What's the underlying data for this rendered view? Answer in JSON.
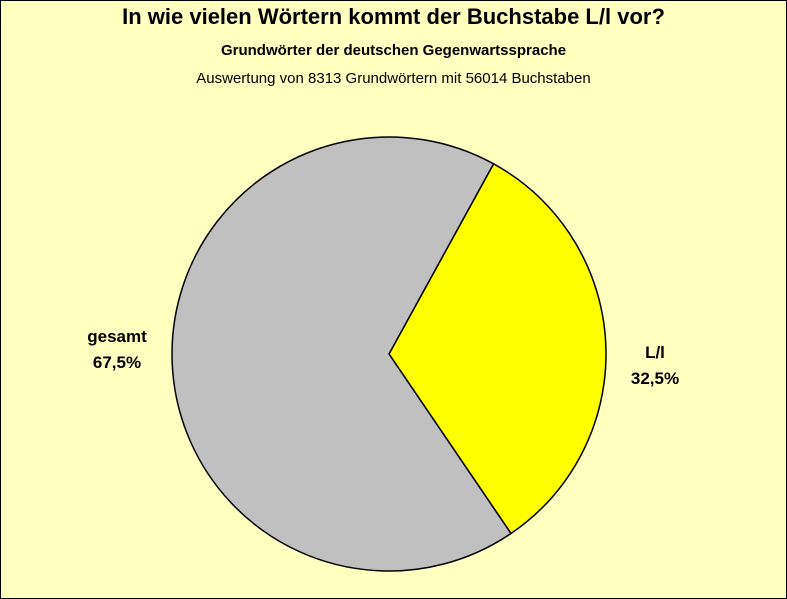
{
  "title": "In wie vielen Wörtern kommt der Buchstabe L/l vor?",
  "subtitle": "Grundwörter der deutschen Gegenwartssprache",
  "subtitle2": "Auswertung von 8313 Grundwörtern mit 56014 Buchstaben",
  "chart_data": {
    "type": "pie",
    "title": "In wie vielen Wörtern kommt der Buchstabe L/l vor?",
    "slices": [
      {
        "label": "L/l",
        "value": 32.5,
        "value_text": "32,5%",
        "color": "#ffff00"
      },
      {
        "label": "gesamt",
        "value": 67.5,
        "value_text": "67,5%",
        "color": "#c0c0c0"
      }
    ]
  }
}
